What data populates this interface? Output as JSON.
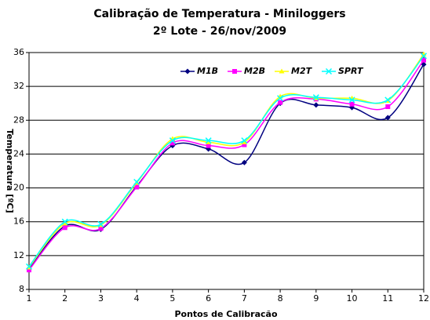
{
  "chart_data": {
    "type": "line",
    "title": "Calibração de Temperatura - Miniloggers",
    "subtitle": "2º Lote - 26/nov/2009",
    "x_label": "Pontos de Calibracão",
    "y_label": "Temperatura [ºC]",
    "x": [
      1,
      2,
      3,
      4,
      5,
      6,
      7,
      8,
      9,
      10,
      11,
      12
    ],
    "xlim": [
      1,
      12
    ],
    "xticks": [
      1,
      2,
      3,
      4,
      5,
      6,
      7,
      8,
      9,
      10,
      11,
      12
    ],
    "ylim": [
      8,
      36
    ],
    "yticks": [
      8,
      12,
      16,
      20,
      24,
      28,
      32,
      36
    ],
    "grid": true,
    "legend": "top-right",
    "series": [
      {
        "name": "M1B",
        "color": "#000080",
        "marker": "diamond",
        "values": [
          10.4,
          15.5,
          15.1,
          20.2,
          25.0,
          24.6,
          23.0,
          30.0,
          29.8,
          29.5,
          28.3,
          34.6
        ]
      },
      {
        "name": "M2B",
        "color": "#ff00ff",
        "marker": "square",
        "values": [
          10.3,
          15.3,
          15.2,
          20.1,
          25.3,
          25.0,
          25.1,
          30.1,
          30.5,
          29.9,
          29.6,
          35.1
        ]
      },
      {
        "name": "M2T",
        "color": "#ffff00",
        "marker": "triangle",
        "values": [
          10.6,
          15.8,
          15.6,
          20.6,
          25.8,
          25.4,
          25.4,
          30.8,
          30.6,
          30.6,
          30.3,
          35.8
        ]
      },
      {
        "name": "SPRT",
        "color": "#00ffff",
        "marker": "cross",
        "values": [
          10.7,
          16.0,
          15.7,
          20.7,
          25.6,
          25.6,
          25.6,
          30.6,
          30.7,
          30.4,
          30.4,
          35.6
        ]
      }
    ]
  }
}
